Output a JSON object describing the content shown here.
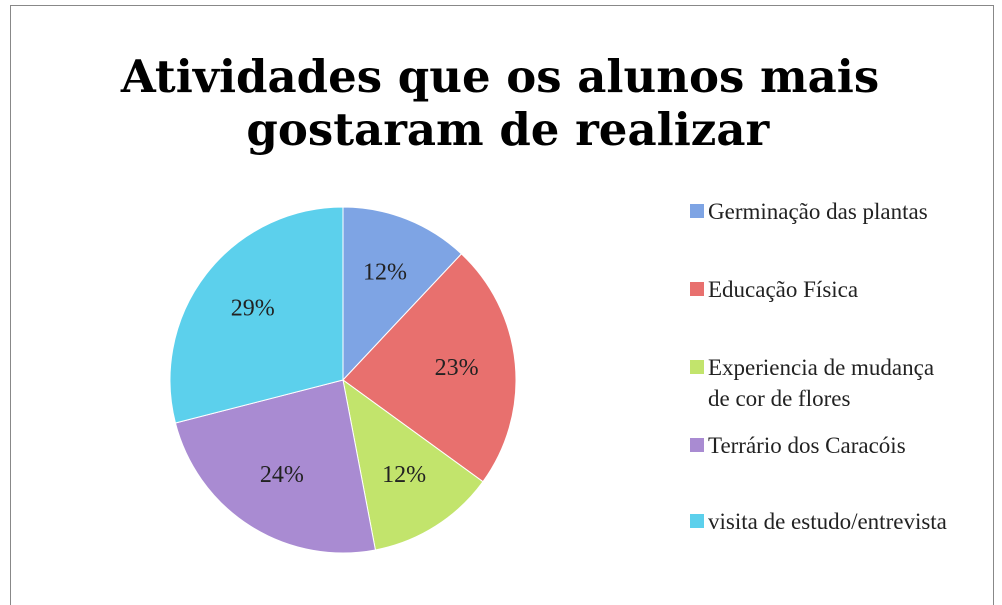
{
  "chart_data": {
    "type": "pie",
    "title": "Atividades que os alunos mais gostaram de realizar",
    "categories": [
      "Germinação das plantas",
      "Educação Física",
      "Experiencia de mudança de cor de flores",
      "Terrário dos Caracóis",
      "visita de estudo/entrevista"
    ],
    "values": [
      12,
      23,
      12,
      24,
      29
    ],
    "value_labels": [
      "12%",
      "23%",
      "12%",
      "24%",
      "29%"
    ],
    "colors": [
      "#7ea4e4",
      "#e8706e",
      "#c2e46c",
      "#a98bd2",
      "#5cd0ec"
    ],
    "legend": "right"
  }
}
